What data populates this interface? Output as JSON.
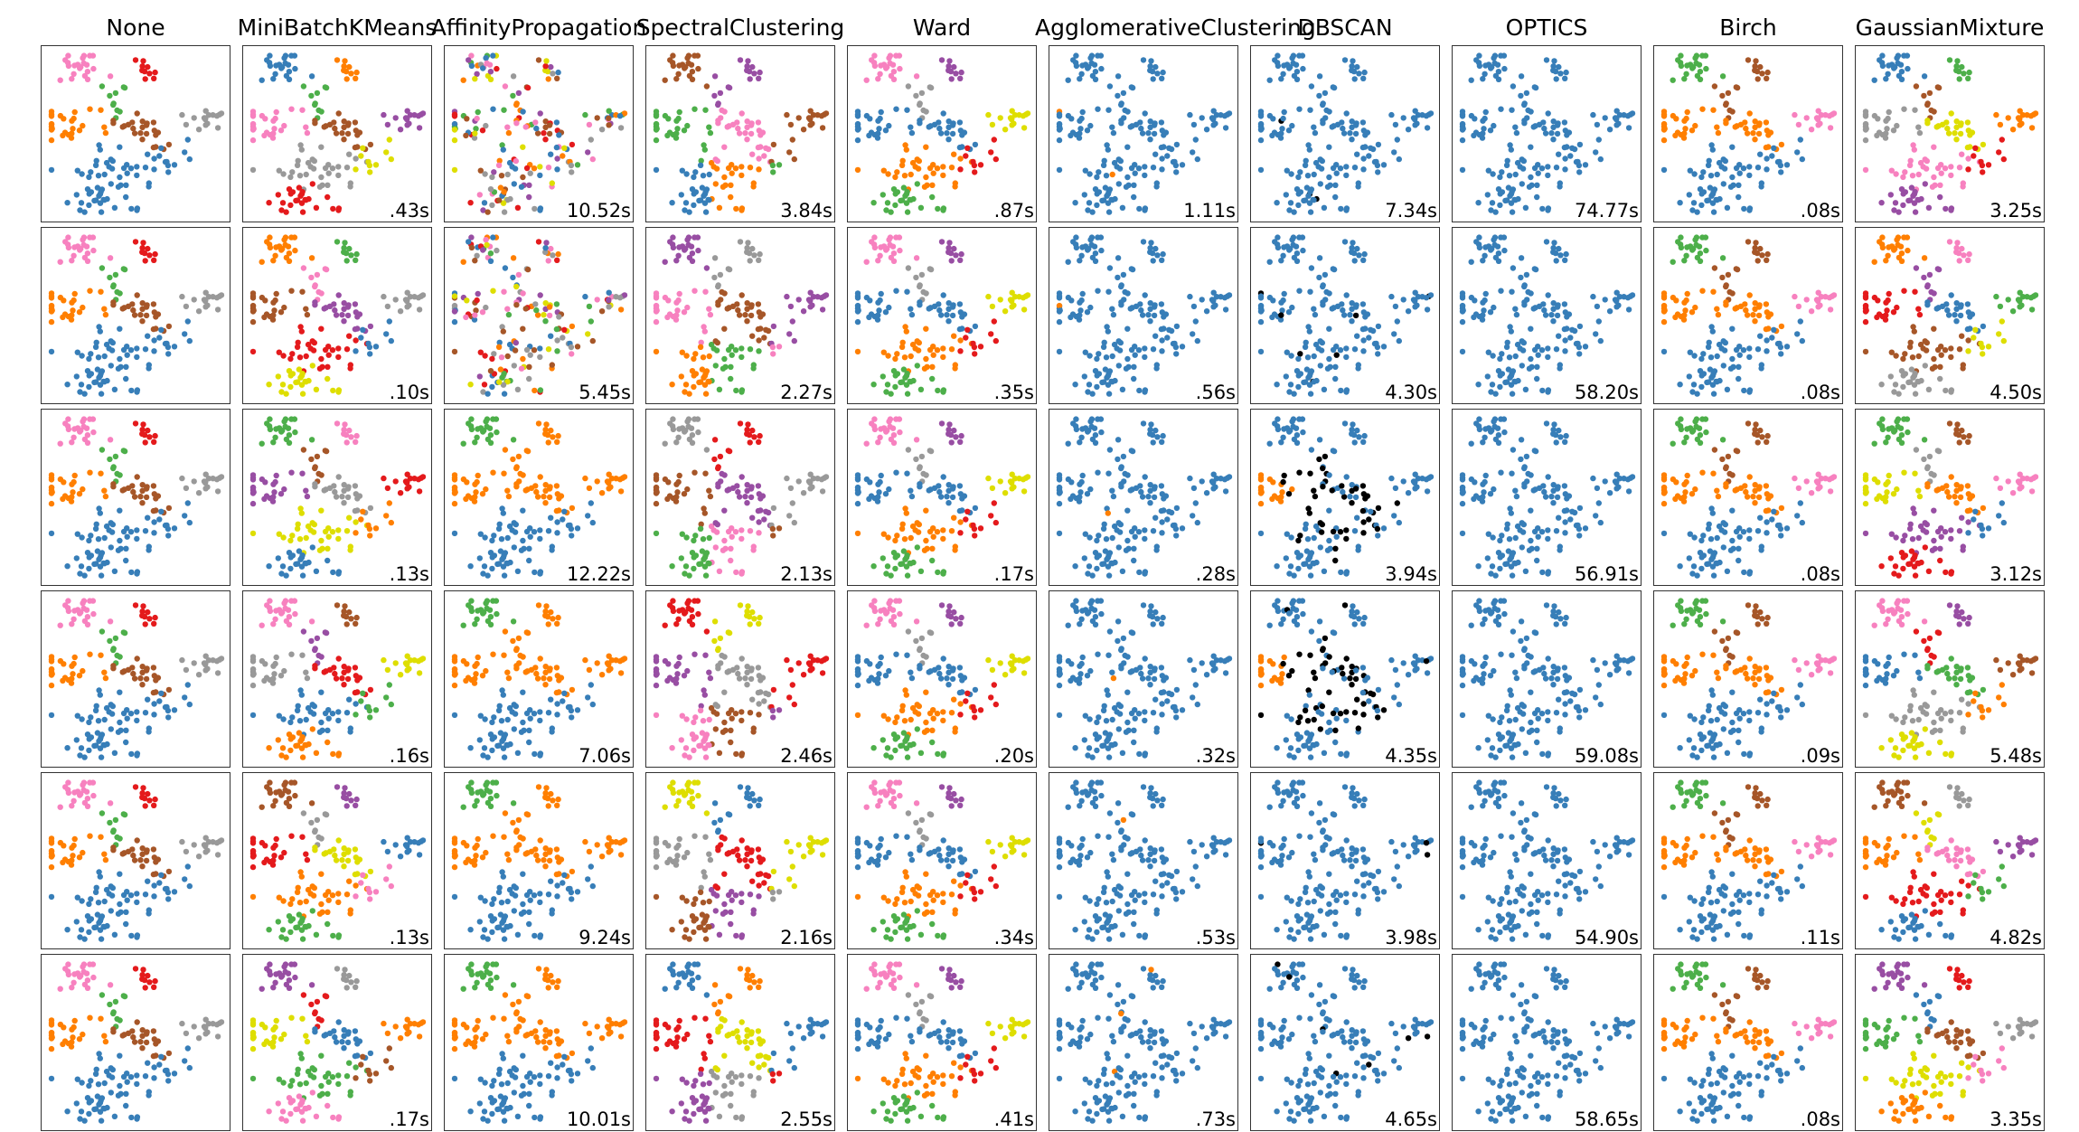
{
  "chart_data": {
    "type": "scatter",
    "description_layout": "grid of 6 rows x 10 columns of small scatter plots; each cell shows the same 2-D point cloud colored by cluster label; bottom-right of each cell shows runtime",
    "columns": [
      "None",
      "MiniBatchKMeans",
      "AffinityPropagation",
      "SpectralClustering",
      "Ward",
      "AgglomerativeClustering",
      "DBSCAN",
      "OPTICS",
      "Birch",
      "GaussianMixture"
    ],
    "timings": [
      [
        "",
        ".43s",
        "10.52s",
        "3.84s",
        ".87s",
        "1.11s",
        "7.34s",
        "74.77s",
        ".08s",
        "3.25s"
      ],
      [
        "",
        ".10s",
        "5.45s",
        "2.27s",
        ".35s",
        ".56s",
        "4.30s",
        "58.20s",
        ".08s",
        "4.50s"
      ],
      [
        "",
        ".13s",
        "12.22s",
        "2.13s",
        ".17s",
        ".28s",
        "3.94s",
        "56.91s",
        ".08s",
        "3.12s"
      ],
      [
        "",
        ".16s",
        "7.06s",
        "2.46s",
        ".20s",
        ".32s",
        "4.35s",
        "59.08s",
        ".09s",
        "5.48s"
      ],
      [
        "",
        ".13s",
        "9.24s",
        "2.16s",
        ".34s",
        ".53s",
        "3.98s",
        "54.90s",
        ".11s",
        "4.82s"
      ],
      [
        "",
        ".17s",
        "10.01s",
        "2.55s",
        ".41s",
        ".73s",
        "4.65s",
        "58.65s",
        ".08s",
        "3.35s"
      ]
    ],
    "xlim": [
      0,
      1
    ],
    "ylim": [
      0,
      1
    ],
    "grid": false,
    "axes_ticks": false,
    "palette": [
      "#377eb8",
      "#ff7f00",
      "#4daf4a",
      "#f781bf",
      "#a65628",
      "#984ea3",
      "#999999",
      "#e41a1c",
      "#dede00"
    ],
    "noise_color": "#000000"
  }
}
